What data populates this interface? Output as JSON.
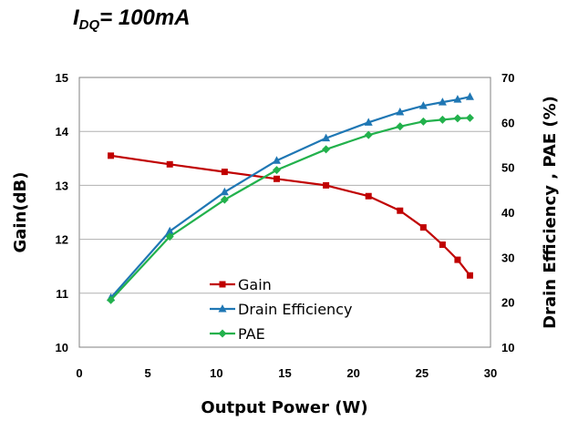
{
  "heading": {
    "main": "I",
    "sub": "DQ",
    "rest": "= 100mA"
  },
  "chart_data": {
    "type": "line",
    "xlabel": "Output Power (W)",
    "ylabel": "Gain(dB)",
    "y2label": "Drain Efficiency , PAE (%)",
    "xlim": [
      0,
      30
    ],
    "ylim": [
      10,
      15
    ],
    "y2lim": [
      10,
      70
    ],
    "xticks": [
      0,
      5,
      10,
      15,
      20,
      25,
      30
    ],
    "yticks": [
      10,
      11,
      12,
      13,
      14,
      15
    ],
    "y2ticks": [
      10,
      20,
      30,
      40,
      50,
      60,
      70
    ],
    "grid": true,
    "legend_position": "bottom-center",
    "series": [
      {
        "name": "Gain",
        "axis": "left",
        "color": "#c00000",
        "marker": "square",
        "x": [
          2.3,
          6.6,
          10.6,
          14.4,
          18.0,
          21.1,
          23.4,
          25.1,
          26.5,
          27.6,
          28.5
        ],
        "y": [
          13.55,
          13.39,
          13.25,
          13.12,
          13.0,
          12.8,
          12.53,
          12.22,
          11.9,
          11.62,
          11.33
        ]
      },
      {
        "name": "Drain Efficiency",
        "axis": "right",
        "color": "#1f77b4",
        "marker": "triangle",
        "x": [
          2.3,
          6.6,
          10.6,
          14.4,
          18.0,
          21.1,
          23.4,
          25.1,
          26.5,
          27.6,
          28.5
        ],
        "y": [
          21.0,
          35.8,
          44.5,
          51.5,
          56.5,
          60.0,
          62.3,
          63.7,
          64.5,
          65.1,
          65.7
        ]
      },
      {
        "name": "PAE",
        "axis": "right",
        "color": "#22b14c",
        "marker": "diamond",
        "x": [
          2.3,
          6.6,
          10.6,
          14.4,
          18.0,
          21.1,
          23.4,
          25.1,
          26.5,
          27.6,
          28.5
        ],
        "y": [
          20.5,
          34.6,
          42.8,
          49.4,
          54.0,
          57.2,
          59.1,
          60.2,
          60.6,
          60.9,
          61.0
        ]
      }
    ]
  }
}
